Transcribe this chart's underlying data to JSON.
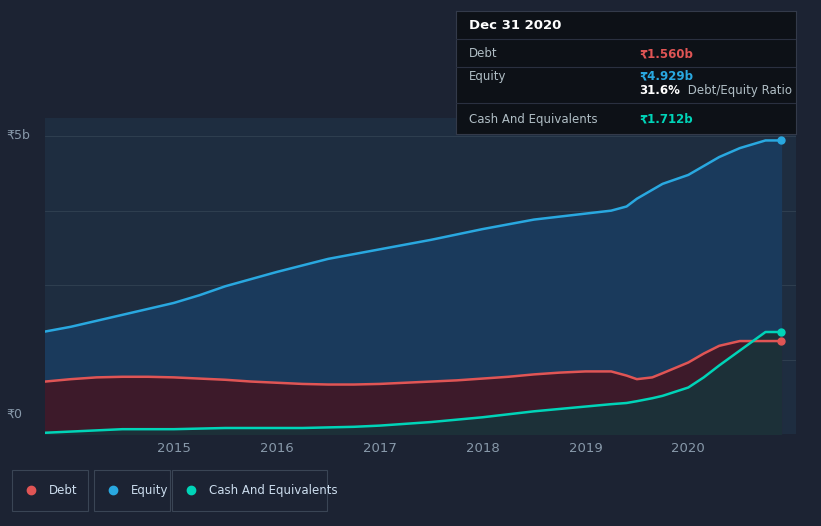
{
  "background_color": "#1c2333",
  "plot_bg_color": "#1e2d40",
  "title_box": {
    "date": "Dec 31 2020",
    "debt_label": "Debt",
    "debt_value": "₹1.560b",
    "equity_label": "Equity",
    "equity_value": "₹4.929b",
    "ratio_bold": "31.6%",
    "ratio_rest": " Debt/Equity Ratio",
    "cash_label": "Cash And Equivalents",
    "cash_value": "₹1.712b"
  },
  "y_label_5b": "₹5b",
  "y_label_0": "₹0",
  "x_ticks": [
    "2015",
    "2016",
    "2017",
    "2018",
    "2019",
    "2020"
  ],
  "x_tick_pos": [
    2015,
    2016,
    2017,
    2018,
    2019,
    2020
  ],
  "equity_color": "#29a8e0",
  "equity_fill": "#1a3a5c",
  "debt_color": "#e05555",
  "debt_fill": "#3d1a2a",
  "cash_color": "#00d4b8",
  "cash_fill": "#1c3038",
  "years": [
    2013.75,
    2014.0,
    2014.25,
    2014.5,
    2014.75,
    2015.0,
    2015.25,
    2015.5,
    2015.75,
    2016.0,
    2016.25,
    2016.5,
    2016.75,
    2017.0,
    2017.25,
    2017.5,
    2017.75,
    2018.0,
    2018.25,
    2018.5,
    2018.75,
    2019.0,
    2019.25,
    2019.4,
    2019.5,
    2019.65,
    2019.75,
    2020.0,
    2020.15,
    2020.3,
    2020.5,
    2020.75,
    2020.9
  ],
  "equity_vals": [
    1.72,
    1.8,
    1.9,
    2.0,
    2.1,
    2.2,
    2.33,
    2.48,
    2.6,
    2.72,
    2.83,
    2.94,
    3.02,
    3.1,
    3.18,
    3.26,
    3.35,
    3.44,
    3.52,
    3.6,
    3.65,
    3.7,
    3.75,
    3.82,
    3.95,
    4.1,
    4.2,
    4.35,
    4.5,
    4.65,
    4.8,
    4.929,
    4.929
  ],
  "debt_vals": [
    0.88,
    0.92,
    0.95,
    0.96,
    0.96,
    0.95,
    0.93,
    0.91,
    0.88,
    0.86,
    0.84,
    0.83,
    0.83,
    0.84,
    0.86,
    0.88,
    0.9,
    0.93,
    0.96,
    1.0,
    1.03,
    1.05,
    1.05,
    0.98,
    0.92,
    0.95,
    1.02,
    1.2,
    1.35,
    1.48,
    1.56,
    1.56,
    1.56
  ],
  "cash_vals": [
    0.02,
    0.04,
    0.06,
    0.08,
    0.08,
    0.08,
    0.09,
    0.1,
    0.1,
    0.1,
    0.1,
    0.11,
    0.12,
    0.14,
    0.17,
    0.2,
    0.24,
    0.28,
    0.33,
    0.38,
    0.42,
    0.46,
    0.5,
    0.52,
    0.55,
    0.6,
    0.64,
    0.78,
    0.95,
    1.15,
    1.4,
    1.712,
    1.712
  ],
  "ylim": [
    0,
    5.3
  ],
  "xlim": [
    2013.75,
    2021.05
  ],
  "grid_y": [
    0,
    1.25,
    2.5,
    3.75,
    5.0
  ],
  "legend_items": [
    {
      "label": "Debt",
      "color": "#e05555"
    },
    {
      "label": "Equity",
      "color": "#29a8e0"
    },
    {
      "label": "Cash And Equivalents",
      "color": "#00d4b8"
    }
  ]
}
